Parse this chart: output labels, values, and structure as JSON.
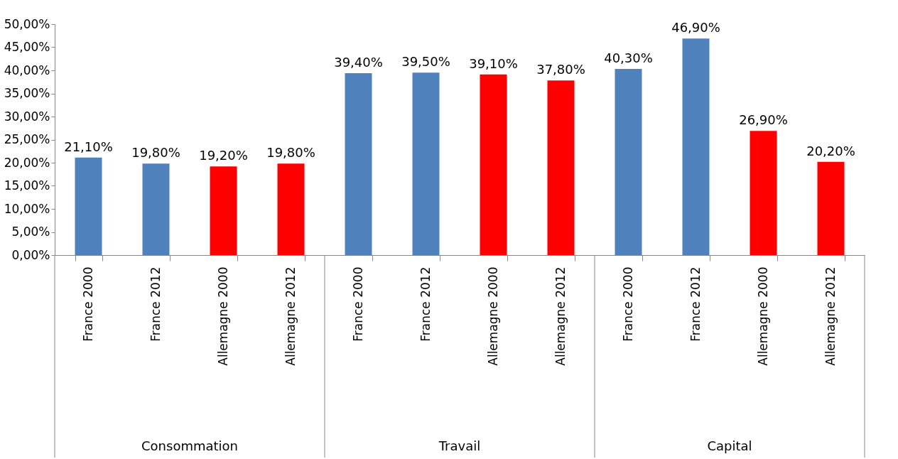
{
  "chart_data": {
    "type": "bar",
    "categories": [
      "France 2000",
      "France 2012",
      "Allemagne 2000",
      "Allemagne 2012",
      "France 2000",
      "France 2012",
      "Allemagne 2000",
      "Allemagne 2012",
      "France 2000",
      "France 2012",
      "Allemagne 2000",
      "Allemagne 2012"
    ],
    "values": [
      21.1,
      19.8,
      19.2,
      19.8,
      39.4,
      39.5,
      39.1,
      37.8,
      40.3,
      46.9,
      26.9,
      20.2
    ],
    "colors": [
      "#4f81bd",
      "#4f81bd",
      "#ff0000",
      "#ff0000",
      "#4f81bd",
      "#4f81bd",
      "#ff0000",
      "#ff0000",
      "#4f81bd",
      "#4f81bd",
      "#ff0000",
      "#ff0000"
    ],
    "value_labels": [
      "21,10%",
      "19,80%",
      "19,20%",
      "19,80%",
      "39,40%",
      "39,50%",
      "39,10%",
      "37,80%",
      "40,30%",
      "46,90%",
      "26,90%",
      "20,20%"
    ],
    "ylim": [
      0,
      50
    ],
    "yticks": [
      {
        "value": 0,
        "label": "0,00%"
      },
      {
        "value": 5,
        "label": "5,00%"
      },
      {
        "value": 10,
        "label": "10,00%"
      },
      {
        "value": 15,
        "label": "15,00%"
      },
      {
        "value": 20,
        "label": "20,00%"
      },
      {
        "value": 25,
        "label": "25,00%"
      },
      {
        "value": 30,
        "label": "30,00%"
      },
      {
        "value": 35,
        "label": "35,00%"
      },
      {
        "value": 40,
        "label": "40,00%"
      },
      {
        "value": 45,
        "label": "45,00%"
      },
      {
        "value": 50,
        "label": "50,00%"
      }
    ],
    "annotations": [
      "Consommation",
      "Travail",
      "Capital"
    ],
    "grid": false
  }
}
